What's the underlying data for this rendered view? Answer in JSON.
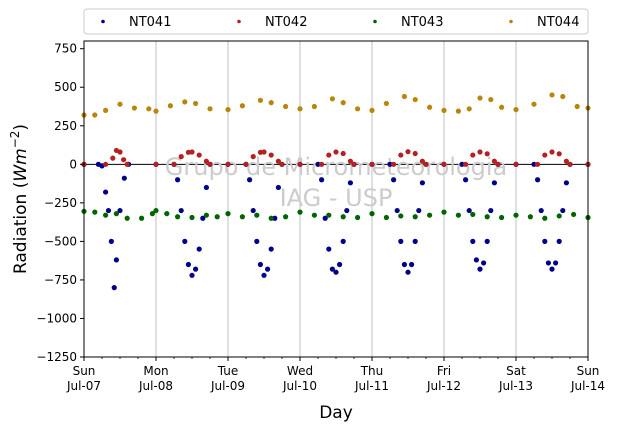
{
  "chart_data": {
    "type": "scatter",
    "title": "",
    "xlabel": "Day",
    "ylabel_prefix": "Radiation (",
    "ylabel_unit_base": "Wm",
    "ylabel_unit_exp": "−2",
    "ylabel_suffix": ")",
    "ylim": [
      -1250,
      800
    ],
    "xlim": [
      0,
      7
    ],
    "grid": "vertical",
    "legend_placement": "top",
    "watermark": [
      "Grupo de Micrometeorologia",
      "IAG - USP"
    ],
    "y_ticks": [
      {
        "value": 750,
        "label": "750"
      },
      {
        "value": 500,
        "label": "500"
      },
      {
        "value": 250,
        "label": "250"
      },
      {
        "value": 0,
        "label": "0"
      },
      {
        "value": -250,
        "label": "−250"
      },
      {
        "value": -500,
        "label": "−500"
      },
      {
        "value": -750,
        "label": "−750"
      },
      {
        "value": -1000,
        "label": "−1000"
      },
      {
        "value": -1250,
        "label": "−1250"
      }
    ],
    "x_ticks": [
      {
        "value": 0,
        "day": "Sun",
        "date": "Jul-07"
      },
      {
        "value": 1,
        "day": "Mon",
        "date": "Jul-08"
      },
      {
        "value": 2,
        "day": "Tue",
        "date": "Jul-09"
      },
      {
        "value": 3,
        "day": "Wed",
        "date": "Jul-10"
      },
      {
        "value": 4,
        "day": "Thu",
        "date": "Jul-11"
      },
      {
        "value": 5,
        "day": "Fri",
        "date": "Jul-12"
      },
      {
        "value": 6,
        "day": "Sat",
        "date": "Jul-13"
      },
      {
        "value": 7,
        "day": "Sun",
        "date": "Jul-14"
      }
    ],
    "series": [
      {
        "name": "NT041",
        "color": "#00008b",
        "points": [
          [
            0.0,
            0
          ],
          [
            0.2,
            0
          ],
          [
            0.25,
            -10
          ],
          [
            0.3,
            -180
          ],
          [
            0.34,
            -300
          ],
          [
            0.38,
            -500
          ],
          [
            0.42,
            -800
          ],
          [
            0.45,
            -620
          ],
          [
            0.5,
            -300
          ],
          [
            0.56,
            -90
          ],
          [
            0.62,
            0
          ],
          [
            1.0,
            0
          ],
          [
            1.25,
            0
          ],
          [
            1.3,
            -100
          ],
          [
            1.35,
            -300
          ],
          [
            1.4,
            -500
          ],
          [
            1.45,
            -650
          ],
          [
            1.5,
            -720
          ],
          [
            1.55,
            -680
          ],
          [
            1.6,
            -550
          ],
          [
            1.65,
            -350
          ],
          [
            1.7,
            -150
          ],
          [
            1.75,
            0
          ],
          [
            2.0,
            0
          ],
          [
            2.25,
            0
          ],
          [
            2.3,
            -100
          ],
          [
            2.35,
            -300
          ],
          [
            2.4,
            -500
          ],
          [
            2.45,
            -650
          ],
          [
            2.5,
            -720
          ],
          [
            2.55,
            -680
          ],
          [
            2.6,
            -550
          ],
          [
            2.65,
            -350
          ],
          [
            2.7,
            -150
          ],
          [
            2.75,
            0
          ],
          [
            3.0,
            0
          ],
          [
            3.25,
            0
          ],
          [
            3.3,
            -100
          ],
          [
            3.35,
            -350
          ],
          [
            3.4,
            -550
          ],
          [
            3.45,
            -680
          ],
          [
            3.5,
            -700
          ],
          [
            3.55,
            -650
          ],
          [
            3.6,
            -500
          ],
          [
            3.65,
            -300
          ],
          [
            3.7,
            -120
          ],
          [
            3.75,
            0
          ],
          [
            4.0,
            0
          ],
          [
            4.25,
            0
          ],
          [
            4.3,
            -100
          ],
          [
            4.35,
            -300
          ],
          [
            4.4,
            -500
          ],
          [
            4.45,
            -650
          ],
          [
            4.5,
            -700
          ],
          [
            4.55,
            -650
          ],
          [
            4.6,
            -500
          ],
          [
            4.65,
            -300
          ],
          [
            4.7,
            -120
          ],
          [
            4.75,
            0
          ],
          [
            5.0,
            0
          ],
          [
            5.25,
            0
          ],
          [
            5.3,
            -100
          ],
          [
            5.35,
            -300
          ],
          [
            5.4,
            -500
          ],
          [
            5.45,
            -620
          ],
          [
            5.5,
            -680
          ],
          [
            5.55,
            -640
          ],
          [
            5.6,
            -500
          ],
          [
            5.65,
            -300
          ],
          [
            5.7,
            -120
          ],
          [
            5.75,
            0
          ],
          [
            6.0,
            0
          ],
          [
            6.25,
            0
          ],
          [
            6.3,
            -100
          ],
          [
            6.35,
            -300
          ],
          [
            6.4,
            -500
          ],
          [
            6.45,
            -640
          ],
          [
            6.5,
            -680
          ],
          [
            6.55,
            -640
          ],
          [
            6.6,
            -500
          ],
          [
            6.65,
            -300
          ],
          [
            6.7,
            -120
          ],
          [
            6.75,
            0
          ],
          [
            7.0,
            0
          ]
        ]
      },
      {
        "name": "NT042",
        "color": "#b22222",
        "points": [
          [
            0.0,
            0
          ],
          [
            0.3,
            0
          ],
          [
            0.4,
            40
          ],
          [
            0.45,
            90
          ],
          [
            0.5,
            80
          ],
          [
            0.55,
            30
          ],
          [
            0.6,
            0
          ],
          [
            1.0,
            0
          ],
          [
            1.25,
            0
          ],
          [
            1.35,
            50
          ],
          [
            1.45,
            78
          ],
          [
            1.5,
            80
          ],
          [
            1.6,
            60
          ],
          [
            1.7,
            20
          ],
          [
            1.75,
            0
          ],
          [
            2.0,
            0
          ],
          [
            2.25,
            0
          ],
          [
            2.35,
            50
          ],
          [
            2.45,
            78
          ],
          [
            2.5,
            80
          ],
          [
            2.6,
            60
          ],
          [
            2.7,
            20
          ],
          [
            2.75,
            0
          ],
          [
            3.0,
            0
          ],
          [
            3.3,
            0
          ],
          [
            3.4,
            60
          ],
          [
            3.5,
            80
          ],
          [
            3.6,
            70
          ],
          [
            3.7,
            20
          ],
          [
            3.75,
            0
          ],
          [
            4.0,
            0
          ],
          [
            4.3,
            0
          ],
          [
            4.4,
            60
          ],
          [
            4.5,
            82
          ],
          [
            4.6,
            70
          ],
          [
            4.7,
            20
          ],
          [
            4.75,
            0
          ],
          [
            5.0,
            0
          ],
          [
            5.3,
            0
          ],
          [
            5.4,
            60
          ],
          [
            5.5,
            80
          ],
          [
            5.6,
            68
          ],
          [
            5.7,
            20
          ],
          [
            5.75,
            0
          ],
          [
            6.0,
            0
          ],
          [
            6.3,
            0
          ],
          [
            6.4,
            60
          ],
          [
            6.5,
            80
          ],
          [
            6.6,
            68
          ],
          [
            6.7,
            20
          ],
          [
            6.75,
            0
          ],
          [
            7.0,
            0
          ]
        ]
      },
      {
        "name": "NT043",
        "color": "#006400",
        "points": [
          [
            0.0,
            -305
          ],
          [
            0.15,
            -310
          ],
          [
            0.3,
            -330
          ],
          [
            0.45,
            -320
          ],
          [
            0.6,
            -350
          ],
          [
            0.8,
            -350
          ],
          [
            0.95,
            -320
          ],
          [
            1.0,
            -300
          ],
          [
            1.15,
            -320
          ],
          [
            1.3,
            -340
          ],
          [
            1.5,
            -345
          ],
          [
            1.7,
            -330
          ],
          [
            1.85,
            -340
          ],
          [
            2.0,
            -320
          ],
          [
            2.2,
            -340
          ],
          [
            2.4,
            -330
          ],
          [
            2.6,
            -350
          ],
          [
            2.8,
            -340
          ],
          [
            3.0,
            -310
          ],
          [
            3.2,
            -330
          ],
          [
            3.4,
            -330
          ],
          [
            3.6,
            -340
          ],
          [
            3.8,
            -345
          ],
          [
            4.0,
            -320
          ],
          [
            4.2,
            -345
          ],
          [
            4.4,
            -335
          ],
          [
            4.6,
            -340
          ],
          [
            4.8,
            -330
          ],
          [
            5.0,
            -310
          ],
          [
            5.2,
            -330
          ],
          [
            5.4,
            -325
          ],
          [
            5.6,
            -340
          ],
          [
            5.8,
            -345
          ],
          [
            6.0,
            -330
          ],
          [
            6.2,
            -340
          ],
          [
            6.4,
            -350
          ],
          [
            6.6,
            -335
          ],
          [
            6.8,
            -325
          ],
          [
            7.0,
            -345
          ]
        ]
      },
      {
        "name": "NT044",
        "color": "#b8860b",
        "points": [
          [
            0.0,
            320
          ],
          [
            0.15,
            320
          ],
          [
            0.3,
            350
          ],
          [
            0.5,
            390
          ],
          [
            0.7,
            365
          ],
          [
            0.9,
            360
          ],
          [
            1.0,
            345
          ],
          [
            1.2,
            380
          ],
          [
            1.4,
            405
          ],
          [
            1.55,
            395
          ],
          [
            1.75,
            360
          ],
          [
            2.0,
            355
          ],
          [
            2.2,
            380
          ],
          [
            2.45,
            415
          ],
          [
            2.6,
            400
          ],
          [
            2.8,
            375
          ],
          [
            3.0,
            360
          ],
          [
            3.2,
            375
          ],
          [
            3.45,
            425
          ],
          [
            3.6,
            400
          ],
          [
            3.8,
            360
          ],
          [
            4.0,
            350
          ],
          [
            4.2,
            395
          ],
          [
            4.45,
            440
          ],
          [
            4.6,
            420
          ],
          [
            4.8,
            370
          ],
          [
            5.0,
            350
          ],
          [
            5.2,
            345
          ],
          [
            5.35,
            360
          ],
          [
            5.5,
            430
          ],
          [
            5.65,
            420
          ],
          [
            5.8,
            370
          ],
          [
            6.0,
            355
          ],
          [
            6.25,
            390
          ],
          [
            6.5,
            450
          ],
          [
            6.65,
            440
          ],
          [
            6.85,
            375
          ],
          [
            7.0,
            365
          ]
        ]
      }
    ]
  }
}
